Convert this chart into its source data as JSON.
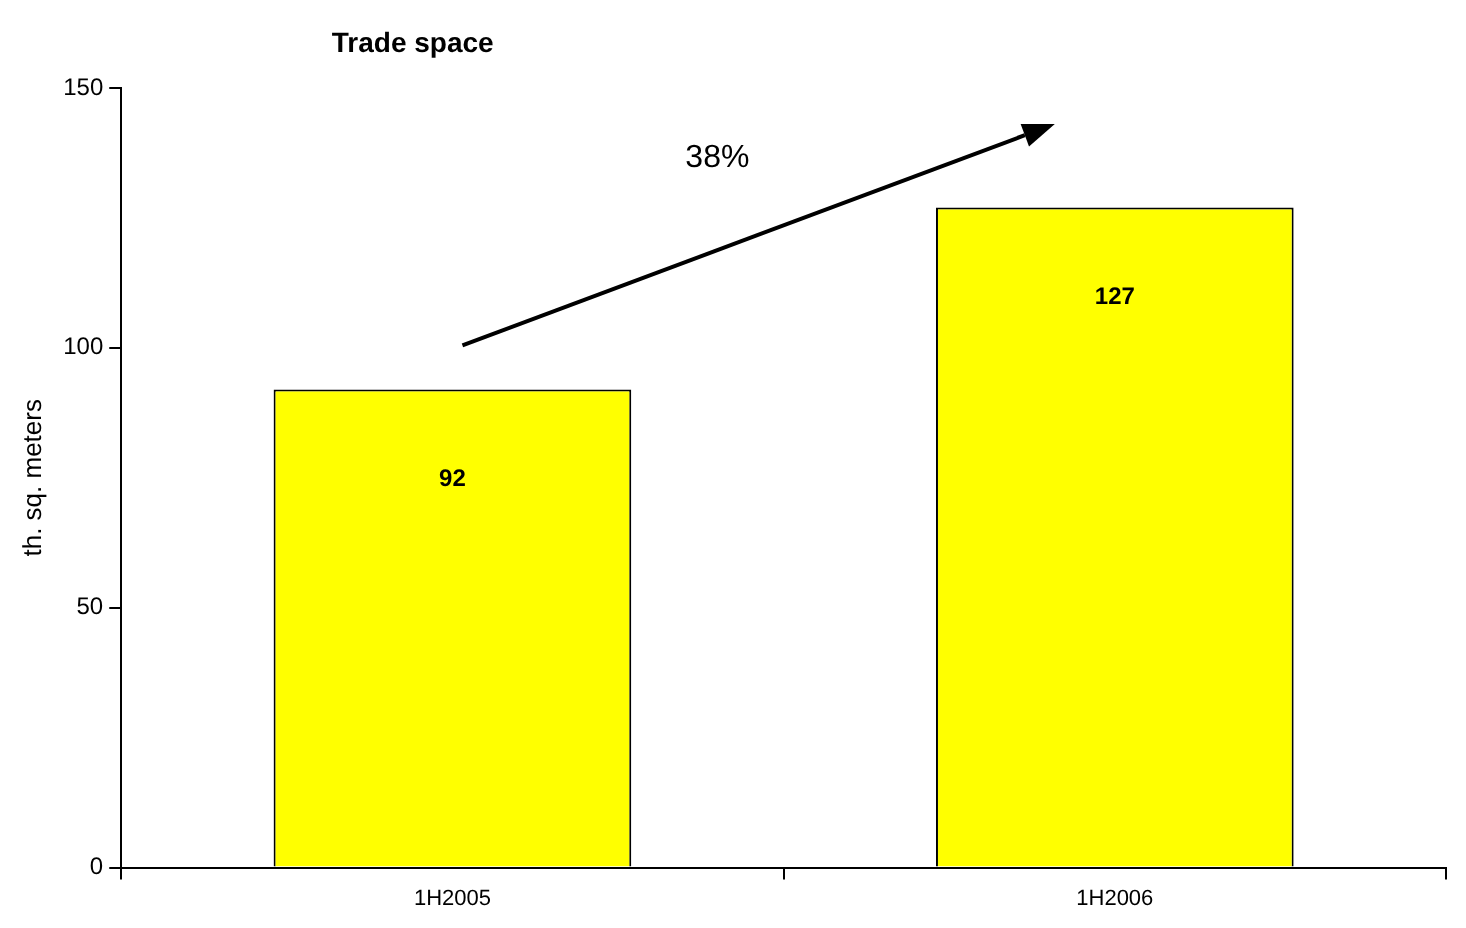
{
  "chart_data": {
    "type": "bar",
    "title": "Trade space",
    "ylabel": "th. sq. meters",
    "categories": [
      "1H2005",
      "1H2006"
    ],
    "values": [
      92,
      127
    ],
    "color": "#ffff00",
    "ylim": [
      0,
      150
    ],
    "yticks": [
      0,
      50,
      100,
      150
    ],
    "grid": false,
    "legend": false,
    "data_labels": true,
    "annotations": [
      "38%"
    ]
  }
}
